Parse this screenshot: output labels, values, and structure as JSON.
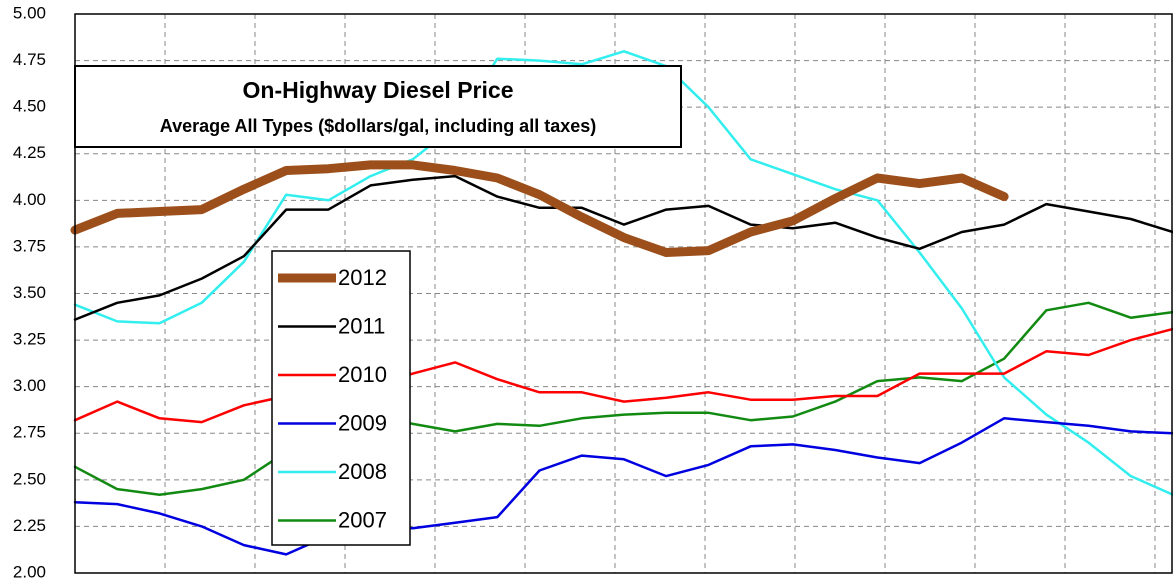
{
  "chart_data": {
    "type": "line",
    "title": "On-Highway Diesel Price",
    "subtitle": "Average All Types ($dollars/gal, including all taxes)",
    "categories": [
      null,
      null,
      null,
      null,
      null,
      null,
      null,
      null,
      null,
      null,
      null,
      null,
      null,
      null,
      null,
      null,
      null,
      null,
      null,
      null,
      null,
      null,
      null,
      null,
      null,
      null,
      null
    ],
    "series": [
      {
        "name": "2012",
        "color": "#9c4f1a",
        "width": 9,
        "values": [
          3.84,
          3.93,
          3.94,
          3.95,
          4.06,
          4.16,
          4.17,
          4.19,
          4.19,
          4.16,
          4.12,
          4.03,
          3.91,
          3.8,
          3.72,
          3.73,
          3.83,
          3.89,
          4.01,
          4.12,
          4.09,
          4.12,
          4.02,
          null,
          null,
          null,
          null
        ]
      },
      {
        "name": "2011",
        "color": "#000000",
        "width": 2.5,
        "values": [
          3.36,
          3.45,
          3.49,
          3.58,
          3.7,
          3.95,
          3.95,
          4.08,
          4.11,
          4.13,
          4.02,
          3.96,
          3.96,
          3.87,
          3.95,
          3.97,
          3.87,
          3.85,
          3.88,
          3.8,
          3.74,
          3.83,
          3.87,
          3.98,
          3.94,
          3.9,
          3.83
        ]
      },
      {
        "name": "2010",
        "color": "#ff0000",
        "width": 2.5,
        "values": [
          2.82,
          2.92,
          2.83,
          2.81,
          2.9,
          2.95,
          2.97,
          3.0,
          3.07,
          3.13,
          3.04,
          2.97,
          2.97,
          2.92,
          2.94,
          2.97,
          2.93,
          2.93,
          2.95,
          2.95,
          3.07,
          3.07,
          3.07,
          3.19,
          3.17,
          3.25,
          3.31
        ]
      },
      {
        "name": "2009",
        "color": "#0000e0",
        "width": 2.5,
        "values": [
          2.38,
          2.37,
          2.32,
          2.25,
          2.15,
          2.1,
          2.2,
          2.25,
          2.24,
          2.27,
          2.3,
          2.55,
          2.63,
          2.61,
          2.52,
          2.58,
          2.68,
          2.69,
          2.66,
          2.62,
          2.59,
          2.7,
          2.83,
          2.81,
          2.79,
          2.76,
          2.75
        ]
      },
      {
        "name": "2008",
        "color": "#33eeee",
        "width": 2.5,
        "values": [
          3.44,
          3.35,
          3.34,
          3.45,
          3.67,
          4.03,
          4.0,
          4.13,
          4.22,
          4.4,
          4.76,
          4.75,
          4.73,
          4.8,
          4.72,
          4.5,
          4.22,
          4.14,
          4.06,
          4.0,
          3.72,
          3.42,
          3.05,
          2.85,
          2.7,
          2.52,
          2.42
        ]
      },
      {
        "name": "2007",
        "color": "#128a12",
        "width": 2.5,
        "values": [
          2.57,
          2.45,
          2.42,
          2.45,
          2.5,
          2.65,
          2.77,
          2.85,
          2.8,
          2.76,
          2.8,
          2.79,
          2.83,
          2.85,
          2.86,
          2.86,
          2.82,
          2.84,
          2.92,
          3.03,
          3.05,
          3.03,
          3.15,
          3.41,
          3.45,
          3.37,
          3.4
        ]
      }
    ],
    "ylim": [
      2.0,
      5.0
    ],
    "yticks": [
      {
        "value": 2.0,
        "label": "2.00"
      },
      {
        "value": 2.25,
        "label": "2.25"
      },
      {
        "value": 2.5,
        "label": "2.50"
      },
      {
        "value": 2.75,
        "label": "2.75"
      },
      {
        "value": 3.0,
        "label": "3.00"
      },
      {
        "value": 3.25,
        "label": "3.25"
      },
      {
        "value": 3.5,
        "label": "3.50"
      },
      {
        "value": 3.75,
        "label": "3.75"
      },
      {
        "value": 4.0,
        "label": "4.00"
      },
      {
        "value": 4.25,
        "label": "4.25"
      },
      {
        "value": 4.5,
        "label": "4.50"
      },
      {
        "value": 4.75,
        "label": "4.75"
      },
      {
        "value": 5.0,
        "label": "5.00"
      }
    ],
    "grid": true
  }
}
